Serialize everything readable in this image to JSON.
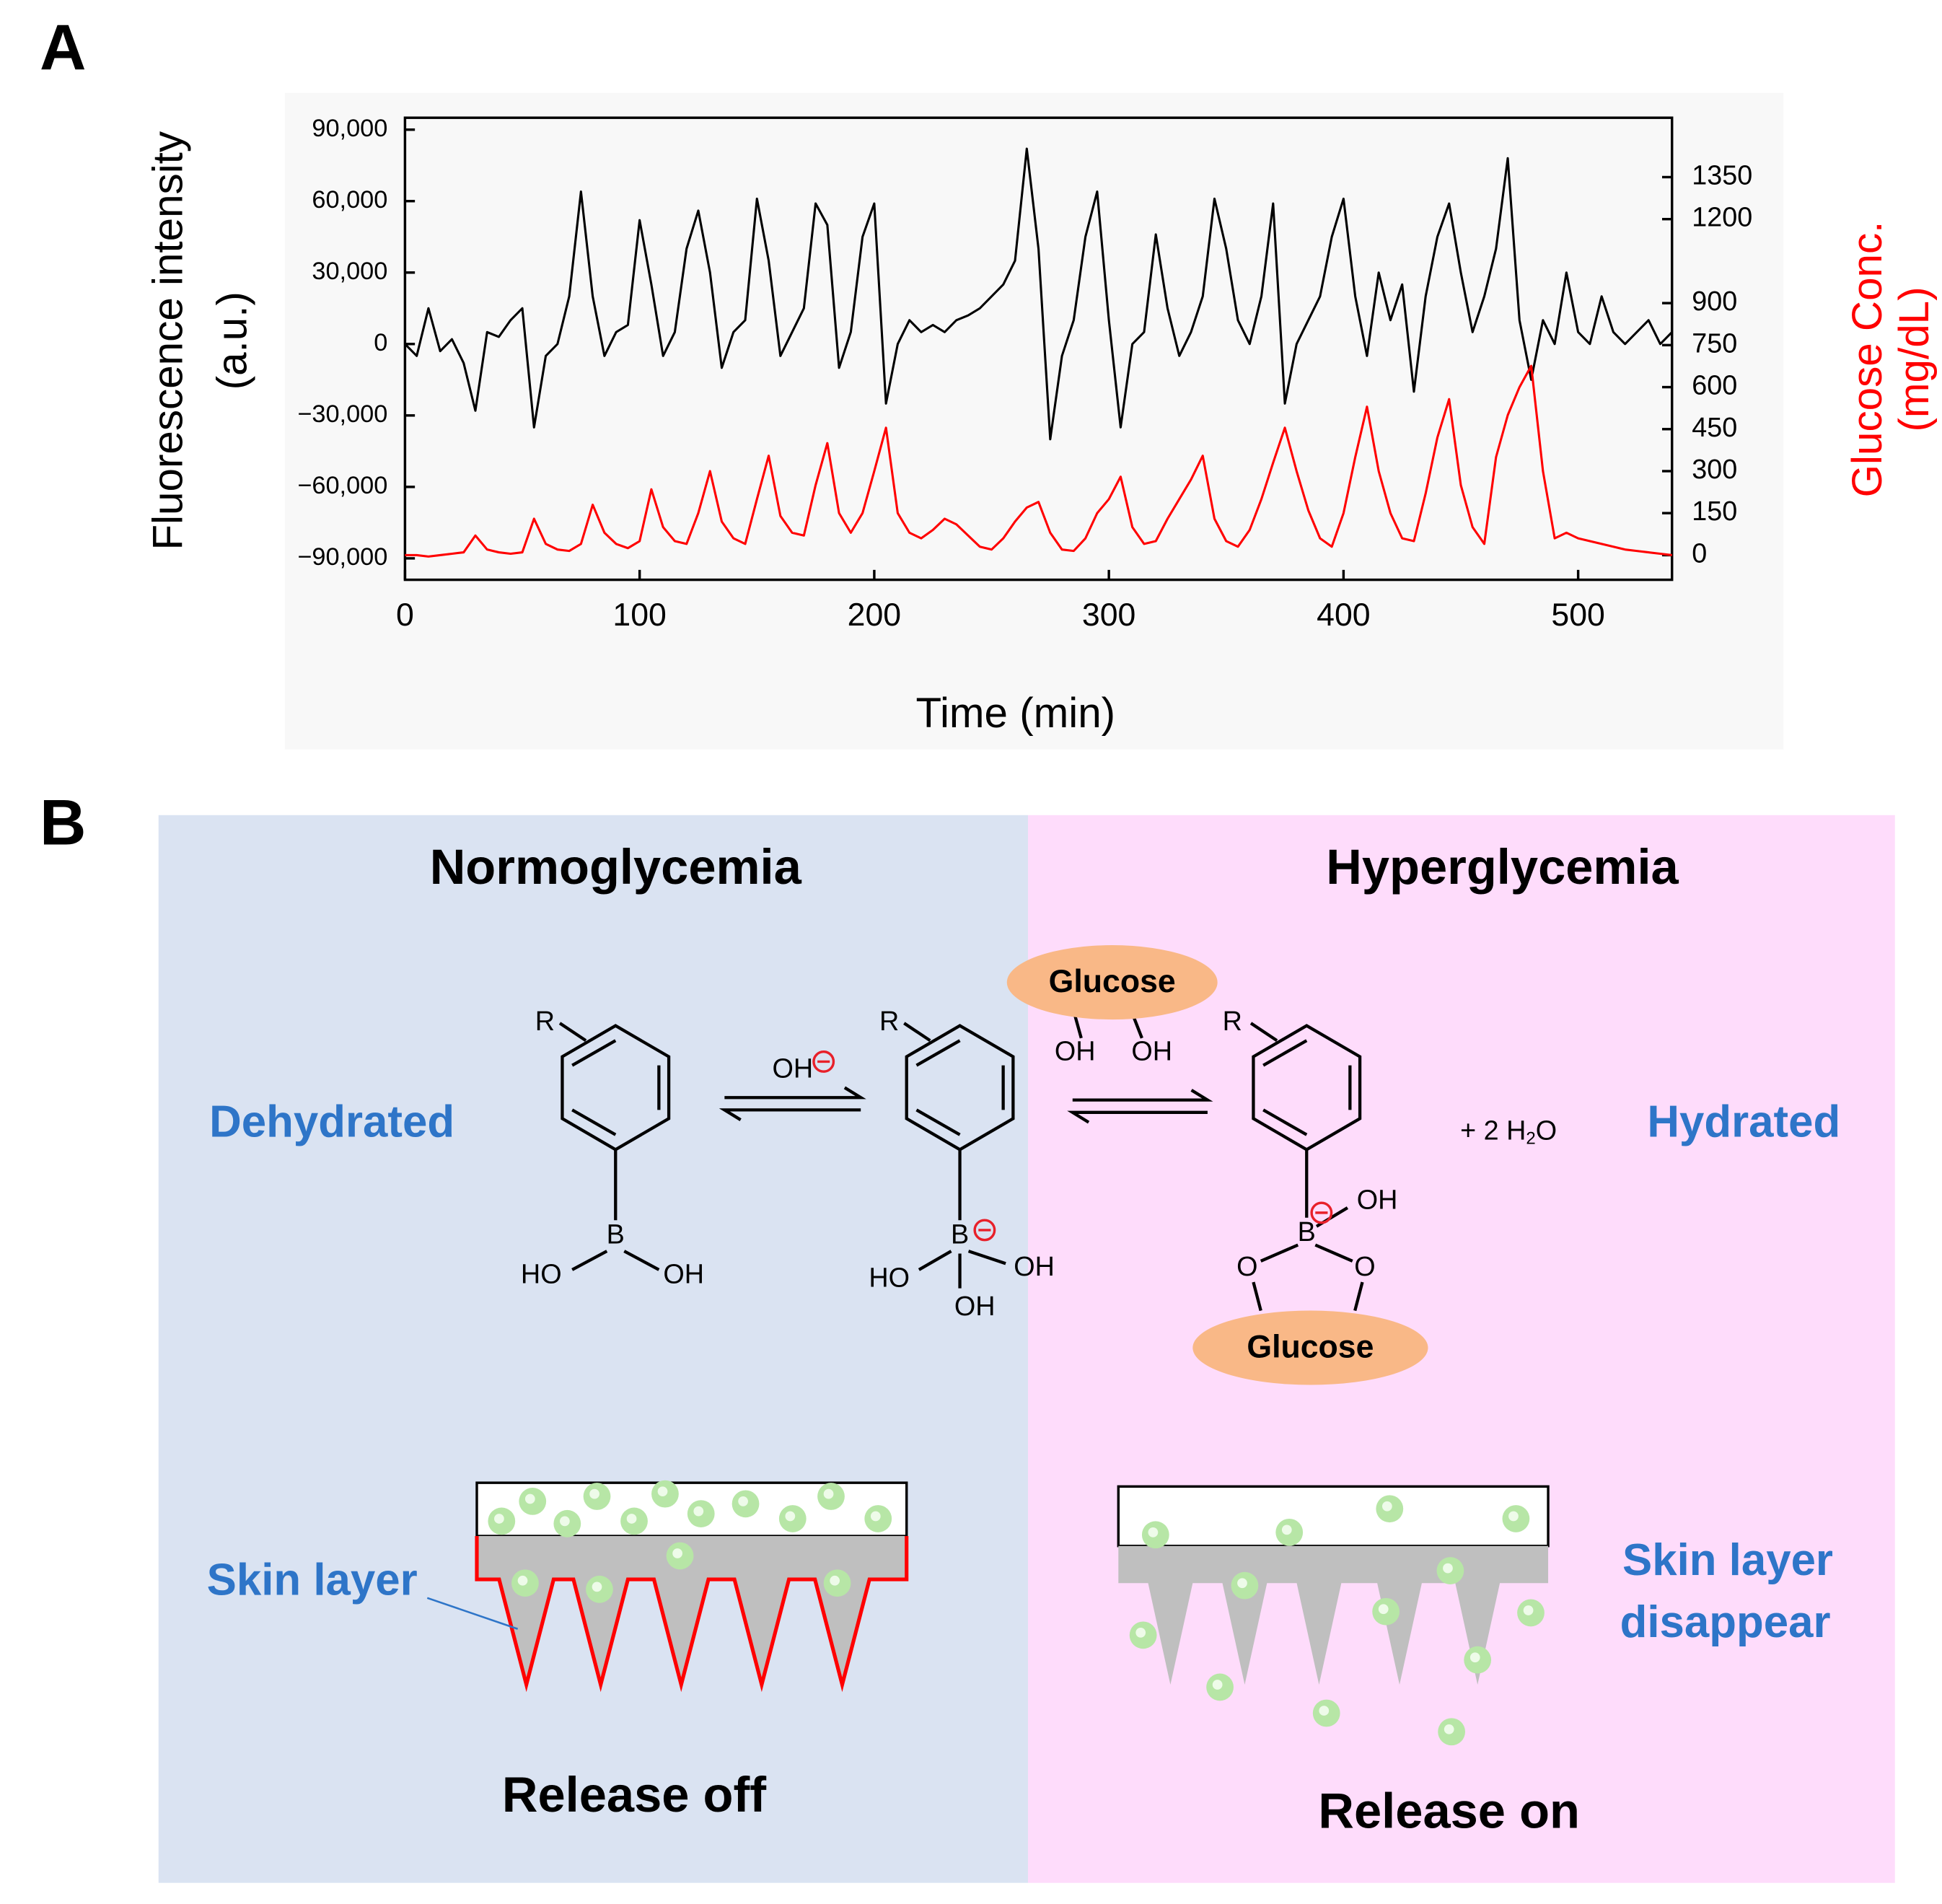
{
  "panel_a_label": "A",
  "chart_data": {
    "type": "line",
    "xlabel": "Time (min)",
    "ylabel": [
      "Fluorescence intensity",
      "(a.u.)"
    ],
    "y2label": [
      "Glucose Conc.",
      "(mg/dL)"
    ],
    "xlim": [
      0,
      540
    ],
    "xticks": [
      0,
      100,
      200,
      300,
      400,
      500
    ],
    "ylim": [
      -99000,
      95000
    ],
    "yticks": [
      {
        "value": -90000,
        "label": "−90,000"
      },
      {
        "value": -60000,
        "label": "−60,000"
      },
      {
        "value": -30000,
        "label": "−30,000"
      },
      0,
      {
        "value": 30000,
        "label": "30,000"
      },
      {
        "value": 60000,
        "label": "60,000"
      },
      {
        "value": 90000,
        "label": "90,000"
      }
    ],
    "y2lim": [
      -88,
      1562
    ],
    "y2ticks": [
      0,
      150,
      300,
      450,
      600,
      750,
      900,
      1200,
      1350
    ],
    "grid": false,
    "x": [
      0,
      5,
      10,
      15,
      20,
      25,
      30,
      35,
      40,
      45,
      50,
      55,
      60,
      65,
      70,
      75,
      80,
      85,
      90,
      95,
      100,
      105,
      110,
      115,
      120,
      125,
      130,
      135,
      140,
      145,
      150,
      155,
      160,
      165,
      170,
      175,
      180,
      185,
      190,
      195,
      200,
      205,
      210,
      215,
      220,
      225,
      230,
      235,
      240,
      245,
      250,
      255,
      260,
      265,
      270,
      275,
      280,
      285,
      290,
      295,
      300,
      305,
      310,
      315,
      320,
      325,
      330,
      335,
      340,
      345,
      350,
      355,
      360,
      365,
      370,
      375,
      380,
      385,
      390,
      395,
      400,
      405,
      410,
      415,
      420,
      425,
      430,
      435,
      440,
      445,
      450,
      455,
      460,
      465,
      470,
      475,
      480,
      485,
      490,
      495,
      500,
      505,
      510,
      515,
      520,
      525,
      530,
      535,
      540
    ],
    "series": [
      {
        "color": "#000000",
        "axis": "y",
        "values": [
          0,
          -5000,
          15000,
          -3000,
          2000,
          -8000,
          -28000,
          5000,
          3000,
          10000,
          15000,
          -35000,
          -5000,
          0,
          20000,
          64000,
          20000,
          -5000,
          5000,
          8000,
          52000,
          25000,
          -5000,
          5000,
          40000,
          56000,
          30000,
          -10000,
          5000,
          10000,
          61000,
          35000,
          -5000,
          5000,
          15000,
          59000,
          50000,
          -10000,
          5000,
          45000,
          59000,
          -25000,
          0,
          10000,
          5000,
          8000,
          5000,
          10000,
          12000,
          15000,
          20000,
          25000,
          35000,
          82000,
          40000,
          -40000,
          -5000,
          10000,
          45000,
          64000,
          10000,
          -35000,
          0,
          5000,
          46000,
          15000,
          -5000,
          5000,
          20000,
          61000,
          40000,
          10000,
          0,
          20000,
          59000,
          -25000,
          0,
          10000,
          20000,
          45000,
          61000,
          20000,
          -5000,
          30000,
          10000,
          25000,
          -20000,
          20000,
          45000,
          59000,
          30000,
          5000,
          20000,
          40000,
          78000,
          10000,
          -15000,
          10000,
          0,
          30000,
          5000,
          0,
          20000,
          5000,
          0,
          5000,
          10000,
          0,
          5000
        ]
      },
      {
        "color": "#ff0000",
        "axis": "y2",
        "values": [
          0,
          0,
          -5,
          0,
          5,
          10,
          70,
          20,
          10,
          5,
          10,
          130,
          40,
          20,
          15,
          40,
          180,
          80,
          40,
          25,
          50,
          235,
          100,
          50,
          40,
          150,
          300,
          120,
          60,
          40,
          200,
          355,
          140,
          80,
          70,
          250,
          400,
          150,
          80,
          150,
          300,
          455,
          150,
          80,
          60,
          90,
          130,
          110,
          70,
          30,
          20,
          60,
          120,
          170,
          190,
          80,
          20,
          15,
          60,
          150,
          200,
          280,
          100,
          40,
          50,
          130,
          200,
          270,
          355,
          130,
          50,
          30,
          90,
          200,
          330,
          455,
          300,
          160,
          60,
          30,
          150,
          350,
          530,
          300,
          150,
          60,
          50,
          220,
          420,
          557,
          250,
          100,
          40,
          350,
          500,
          600,
          676,
          300,
          60,
          80,
          60,
          50,
          40,
          30,
          20,
          15,
          10,
          5,
          0
        ]
      }
    ]
  },
  "panel_b": {
    "label": "B",
    "left_title": "Normoglycemia",
    "right_title": "Hyperglycemia",
    "left_state": "Dehydrated",
    "right_state": "Hydrated",
    "glucose": "Glucose",
    "r": "R",
    "boron": "B",
    "oh": "OH",
    "ho": "HO",
    "oxygen": "O",
    "water_prefix": "+ 2 H",
    "water_sub": "2",
    "water_suffix": "O",
    "skin_layer": "Skin layer",
    "skin_layer_gone": [
      "Skin layer",
      "disappear"
    ],
    "release_off": "Release off",
    "release_on": "Release on"
  }
}
